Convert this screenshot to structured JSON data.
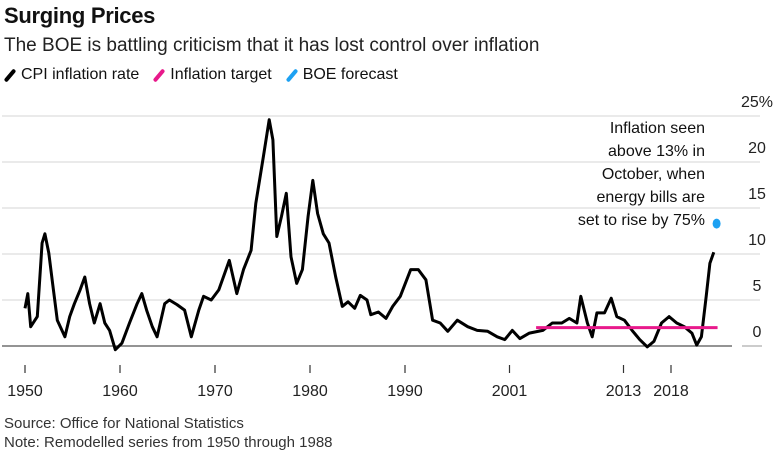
{
  "title": "Surging Prices",
  "subtitle": "The BOE is battling criticism that it has lost control over inflation",
  "legend": [
    {
      "label": "CPI inflation rate",
      "color": "#000000"
    },
    {
      "label": "Inflation target",
      "color": "#e8198b"
    },
    {
      "label": "BOE forecast",
      "color": "#1da1f2"
    }
  ],
  "annotation": [
    "Inflation seen",
    "above 13% in",
    "October, when",
    "energy bills are",
    "set to rise by 75%"
  ],
  "source": "Source: Office for National Statistics",
  "note": "Note: Remodelled series from 1950 through 1988",
  "chart_data": {
    "type": "line",
    "title": "Surging Prices",
    "ylabel": "%",
    "ylim": [
      0,
      25
    ],
    "yticks": [
      0,
      5,
      10,
      15,
      20,
      25
    ],
    "ytick_labels": [
      "0",
      "5",
      "10",
      "15",
      "20",
      "25%"
    ],
    "xticks": [
      1950,
      1960,
      1970,
      1980,
      1990,
      2001,
      2013,
      2018
    ],
    "xtick_labels": [
      "1950",
      "1960",
      "1970",
      "1980",
      "1990",
      "2001",
      "2013",
      "2018"
    ],
    "grid": true,
    "legend_position": "top-left",
    "series": [
      {
        "name": "CPI inflation rate",
        "x": [
          1950.0,
          1950.3,
          1950.6,
          1951.3,
          1951.8,
          1952.1,
          1952.5,
          1952.9,
          1953.4,
          1954.2,
          1954.7,
          1955.2,
          1955.8,
          1956.3,
          1956.8,
          1957.3,
          1957.9,
          1958.4,
          1958.9,
          1959.5,
          1960.2,
          1961.0,
          1961.8,
          1962.3,
          1962.8,
          1963.4,
          1963.9,
          1964.7,
          1965.2,
          1966.0,
          1966.8,
          1967.5,
          1968.3,
          1968.8,
          1969.6,
          1970.4,
          1971.5,
          1972.3,
          1973.0,
          1973.8,
          1974.3,
          1975.1,
          1975.7,
          1976.1,
          1976.5,
          1977.0,
          1977.5,
          1978.0,
          1978.6,
          1979.2,
          1979.8,
          1980.3,
          1980.8,
          1981.4,
          1982.0,
          1982.7,
          1983.4,
          1984.0,
          1984.7,
          1985.3,
          1986.0,
          1986.4,
          1987.2,
          1988.0,
          1988.7,
          1989.5,
          1990.6,
          1991.4,
          1992.2,
          1992.9,
          1993.7,
          1994.5,
          1995.5,
          1996.6,
          1997.6,
          1998.7,
          1999.7,
          2000.5,
          2001.3,
          2002.1,
          2003.1,
          2004.5,
          2005.5,
          2006.5,
          2007.3,
          2008.1,
          2008.5,
          2009.2,
          2009.7,
          2010.2,
          2011.0,
          2011.7,
          2012.3,
          2013.1,
          2013.9,
          2014.7,
          2015.5,
          2016.2,
          2017.0,
          2017.8,
          2018.6,
          2019.4,
          2020.2,
          2020.7,
          2021.2,
          2021.7,
          2022.1,
          2022.5
        ],
        "values": [
          4.1,
          5.7,
          2.1,
          3.2,
          11.2,
          12.2,
          10.1,
          6.8,
          2.8,
          1.0,
          3.2,
          4.6,
          6.1,
          7.5,
          4.6,
          2.5,
          4.6,
          2.5,
          1.7,
          -0.4,
          0.3,
          2.5,
          4.6,
          5.7,
          3.9,
          2.1,
          1.0,
          4.6,
          5.0,
          4.5,
          3.9,
          1.0,
          3.9,
          5.4,
          5.0,
          6.1,
          9.3,
          5.7,
          8.3,
          10.4,
          15.5,
          20.6,
          24.6,
          22.4,
          11.9,
          14.1,
          16.6,
          9.7,
          6.8,
          8.3,
          14.1,
          18.0,
          14.4,
          12.2,
          11.2,
          7.5,
          4.3,
          4.8,
          4.1,
          5.5,
          5.0,
          3.4,
          3.7,
          3.0,
          4.3,
          5.4,
          8.3,
          8.3,
          7.2,
          2.8,
          2.5,
          1.6,
          2.8,
          2.1,
          1.7,
          1.6,
          1.0,
          0.7,
          1.7,
          0.8,
          1.4,
          1.7,
          2.5,
          2.5,
          3.0,
          2.5,
          5.4,
          2.5,
          1.0,
          3.6,
          3.6,
          5.2,
          3.2,
          2.8,
          1.7,
          0.7,
          -0.1,
          0.5,
          2.5,
          3.2,
          2.5,
          2.1,
          1.4,
          0.1,
          1.0,
          5.4,
          9.0,
          10.2
        ],
        "color": "#000000"
      },
      {
        "name": "Inflation target",
        "x": [
          2003.8,
          2022.9
        ],
        "values": [
          2,
          2
        ],
        "color": "#e8198b"
      },
      {
        "name": "BOE forecast",
        "x": [
          2022.8
        ],
        "values": [
          13.3
        ],
        "color": "#1da1f2"
      }
    ]
  }
}
